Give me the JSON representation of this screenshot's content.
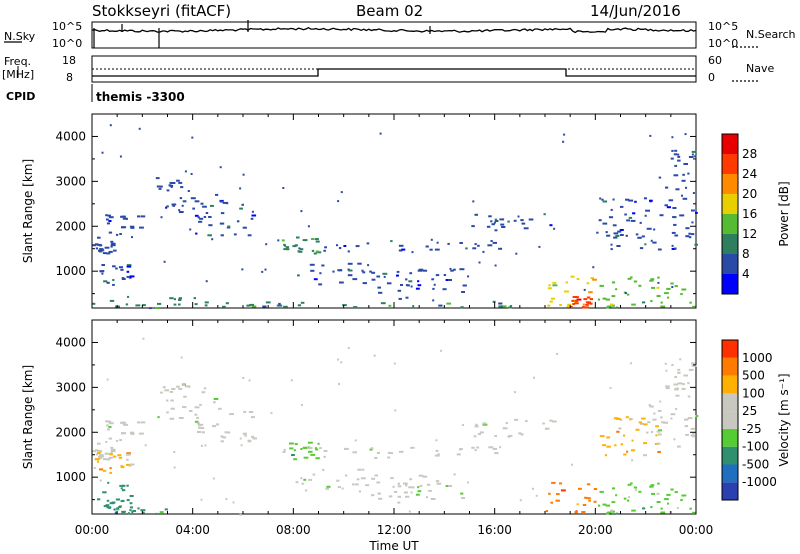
{
  "header": {
    "station": "Stokkseyri (fitACF)",
    "beam": "Beam 02",
    "date": "14/Jun/2016"
  },
  "strip_nsky": {
    "left_label": "N.Sky",
    "right_label": "N.Search",
    "left_ticks": [
      "10^5",
      "10^0"
    ],
    "right_ticks": [
      "10^5",
      "10^0"
    ]
  },
  "strip_freq": {
    "left_label_top": "Freq.",
    "left_label_bottom": "[MHz]",
    "cpid_label": "CPID",
    "left_ticks": [
      "18",
      "8"
    ],
    "right_ticks": [
      "60",
      "0"
    ],
    "right_label": "Nave",
    "cpid_text": "themis -3300"
  },
  "chart_data": [
    {
      "type": "heatmap",
      "panel": "power",
      "ylabel": "Slant Range [km]",
      "xlabel": "",
      "x_range": [
        "00:00",
        "24:00"
      ],
      "ylim": [
        180,
        4500
      ],
      "yticks": [
        "1000",
        "2000",
        "3000",
        "4000"
      ],
      "colorbar_label": "Power [dB]",
      "colorbar_ticks": [
        "4",
        "8",
        "12",
        "16",
        "20",
        "24",
        "28"
      ],
      "colors": [
        "#0000ff",
        "#2a4aa8",
        "#2f7f5e",
        "#55bb33",
        "#e8d000",
        "#ff8a00",
        "#ff3a00",
        "#e80000"
      ],
      "regions": [
        {
          "t": [
            0.0,
            1.0
          ],
          "r": [
            1400,
            1800
          ],
          "level": 1
        },
        {
          "t": [
            0.5,
            2.0
          ],
          "r": [
            1800,
            2300
          ],
          "level": 1
        },
        {
          "t": [
            0.2,
            1.5
          ],
          "r": [
            700,
            1200
          ],
          "level": 1
        },
        {
          "t": [
            0.0,
            4.5
          ],
          "r": [
            200,
            450
          ],
          "level": 2
        },
        {
          "t": [
            2.5,
            5.0
          ],
          "r": [
            2300,
            3100
          ],
          "level": 1
        },
        {
          "t": [
            4.0,
            6.5
          ],
          "r": [
            1800,
            2600
          ],
          "level": 1
        },
        {
          "t": [
            7.5,
            9.0
          ],
          "r": [
            1400,
            1800
          ],
          "level": 2
        },
        {
          "t": [
            8.0,
            11.0
          ],
          "r": [
            700,
            1200
          ],
          "level": 1
        },
        {
          "t": [
            9.0,
            16.5
          ],
          "r": [
            1450,
            1700
          ],
          "level": 1
        },
        {
          "t": [
            11.0,
            15.0
          ],
          "r": [
            400,
            1100
          ],
          "level": 1
        },
        {
          "t": [
            15.0,
            18.5
          ],
          "r": [
            1900,
            2300
          ],
          "level": 1
        },
        {
          "t": [
            18.0,
            20.0
          ],
          "r": [
            200,
            900
          ],
          "level": 4
        },
        {
          "t": [
            19.0,
            19.8
          ],
          "r": [
            200,
            450
          ],
          "level": 6
        },
        {
          "t": [
            20.0,
            24.0
          ],
          "r": [
            200,
            900
          ],
          "level": 3
        },
        {
          "t": [
            20.0,
            24.0
          ],
          "r": [
            1500,
            2700
          ],
          "level": 1
        },
        {
          "t": [
            22.5,
            24.0
          ],
          "r": [
            2800,
            3800
          ],
          "level": 1
        },
        {
          "t": [
            5.0,
            18.0
          ],
          "r": [
            200,
            350
          ],
          "level": 2
        }
      ]
    },
    {
      "type": "heatmap",
      "panel": "velocity",
      "ylabel": "Slant Range [km]",
      "xlabel": "Time UT",
      "x_range": [
        "00:00",
        "24:00"
      ],
      "xticks": [
        "00:00",
        "04:00",
        "08:00",
        "12:00",
        "16:00",
        "20:00",
        "00:00"
      ],
      "ylim": [
        180,
        4500
      ],
      "yticks": [
        "1000",
        "2000",
        "3000",
        "4000"
      ],
      "colorbar_label": "Velocity [m s⁻¹]",
      "colorbar_ticks": [
        "1000",
        "500",
        "100",
        "25",
        "-25",
        "-100",
        "-500",
        "-1000"
      ],
      "colors": [
        "#2a40b0",
        "#1f6fc0",
        "#2f8f6e",
        "#55cc33",
        "#c8c8c0",
        "#c8c8c0",
        "#ffb000",
        "#ff7a00",
        "#ff3000"
      ],
      "regions": [
        {
          "t": [
            0.0,
            1.0
          ],
          "r": [
            1400,
            1800
          ],
          "level": 4
        },
        {
          "t": [
            0.5,
            2.0
          ],
          "r": [
            1800,
            2300
          ],
          "level": 4
        },
        {
          "t": [
            0.0,
            1.5
          ],
          "r": [
            1100,
            1600
          ],
          "level": 6
        },
        {
          "t": [
            0.2,
            1.5
          ],
          "r": [
            300,
            900
          ],
          "level": 2
        },
        {
          "t": [
            0.5,
            3.0
          ],
          "r": [
            200,
            400
          ],
          "level": 2
        },
        {
          "t": [
            2.5,
            5.0
          ],
          "r": [
            2300,
            3100
          ],
          "level": 4
        },
        {
          "t": [
            4.0,
            6.5
          ],
          "r": [
            1800,
            2600
          ],
          "level": 4
        },
        {
          "t": [
            7.5,
            9.0
          ],
          "r": [
            1400,
            1800
          ],
          "level": 3
        },
        {
          "t": [
            8.0,
            11.0
          ],
          "r": [
            700,
            1200
          ],
          "level": 4
        },
        {
          "t": [
            9.0,
            16.5
          ],
          "r": [
            1450,
            1700
          ],
          "level": 4
        },
        {
          "t": [
            11.0,
            15.0
          ],
          "r": [
            400,
            1100
          ],
          "level": 4
        },
        {
          "t": [
            15.0,
            18.5
          ],
          "r": [
            1900,
            2300
          ],
          "level": 4
        },
        {
          "t": [
            18.0,
            20.0
          ],
          "r": [
            200,
            900
          ],
          "level": 7
        },
        {
          "t": [
            20.0,
            24.0
          ],
          "r": [
            200,
            900
          ],
          "level": 3
        },
        {
          "t": [
            20.0,
            22.5
          ],
          "r": [
            1500,
            2400
          ],
          "level": 6
        },
        {
          "t": [
            22.0,
            24.0
          ],
          "r": [
            1700,
            2700
          ],
          "level": 4
        },
        {
          "t": [
            22.5,
            24.0
          ],
          "r": [
            2800,
            3600
          ],
          "level": 4
        }
      ]
    }
  ]
}
